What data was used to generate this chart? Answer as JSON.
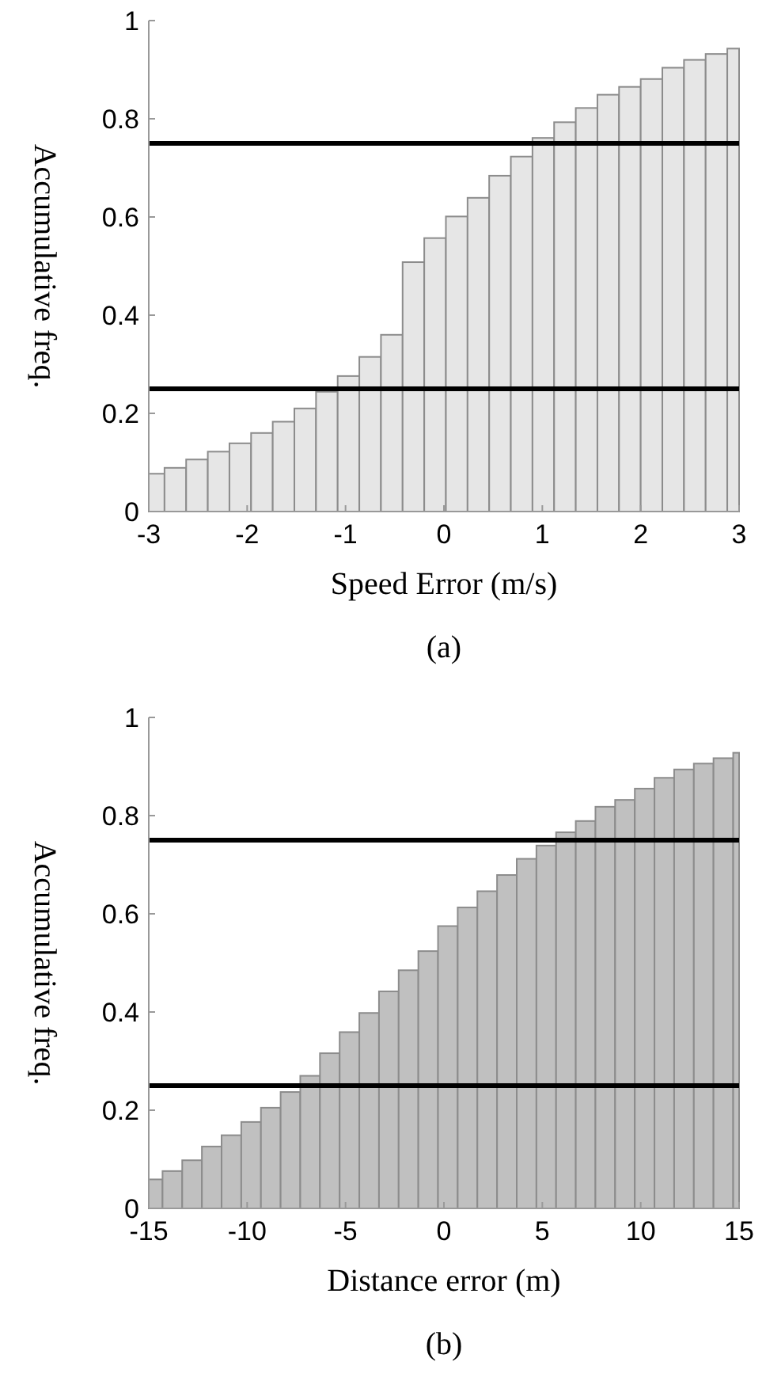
{
  "chart_data": [
    {
      "type": "histogram",
      "xlabel": "Speed Error (m/s)",
      "ylabel": "Accumulative freq.",
      "annotations": [
        "(a)"
      ],
      "color": "#e6e6e6",
      "bins": [
        -3,
        -2.84,
        -2.62,
        -2.4,
        -2.18,
        -1.96,
        -1.74,
        -1.52,
        -1.3,
        -1.08,
        -0.86,
        -0.64,
        -0.42,
        -0.2,
        0.02,
        0.24,
        0.46,
        0.68,
        0.9,
        1.12,
        1.34,
        1.56,
        1.78,
        2.0,
        2.22,
        2.44,
        2.66,
        2.88,
        3
      ],
      "values": [
        0.077,
        0.089,
        0.106,
        0.122,
        0.139,
        0.16,
        0.183,
        0.21,
        0.244,
        0.276,
        0.315,
        0.36,
        0.508,
        0.557,
        0.601,
        0.639,
        0.684,
        0.723,
        0.761,
        0.793,
        0.822,
        0.849,
        0.865,
        0.881,
        0.904,
        0.92,
        0.932,
        0.943
      ],
      "xlim": [
        -3,
        3
      ],
      "xticks": [
        -3,
        -2,
        -1,
        0,
        1,
        2,
        3
      ],
      "ylim": [
        0,
        1
      ],
      "yticks": [
        0,
        0.2,
        0.4,
        0.6,
        0.8,
        1
      ],
      "ref_lines": [
        {
          "axis": "y",
          "value": 0.25,
          "color": "#000000"
        },
        {
          "axis": "y",
          "value": 0.75,
          "color": "#000000"
        }
      ]
    },
    {
      "type": "histogram",
      "xlabel": "Distance error (m)",
      "ylabel": "Accumulative freq.",
      "annotations": [
        "(b)"
      ],
      "color": "#c0c0c0",
      "bins": [
        -15,
        -14.3,
        -13.3,
        -12.3,
        -11.3,
        -10.3,
        -9.3,
        -8.3,
        -7.3,
        -6.3,
        -5.3,
        -4.3,
        -3.3,
        -2.3,
        -1.3,
        -0.3,
        0.7,
        1.7,
        2.7,
        3.7,
        4.7,
        5.7,
        6.7,
        7.7,
        8.7,
        9.7,
        10.7,
        11.7,
        12.7,
        13.7,
        14.7,
        15
      ],
      "values": [
        0.059,
        0.076,
        0.098,
        0.126,
        0.149,
        0.176,
        0.205,
        0.237,
        0.27,
        0.316,
        0.359,
        0.398,
        0.442,
        0.485,
        0.524,
        0.575,
        0.613,
        0.646,
        0.679,
        0.712,
        0.739,
        0.766,
        0.789,
        0.818,
        0.832,
        0.855,
        0.877,
        0.894,
        0.906,
        0.917,
        0.928
      ],
      "xlim": [
        -15,
        15
      ],
      "xticks": [
        -15,
        -10,
        -5,
        0,
        5,
        10,
        15
      ],
      "ylim": [
        0,
        1
      ],
      "yticks": [
        0,
        0.2,
        0.4,
        0.6,
        0.8,
        1
      ],
      "ref_lines": [
        {
          "axis": "y",
          "value": 0.25,
          "color": "#000000"
        },
        {
          "axis": "y",
          "value": 0.75,
          "color": "#000000"
        }
      ]
    }
  ]
}
